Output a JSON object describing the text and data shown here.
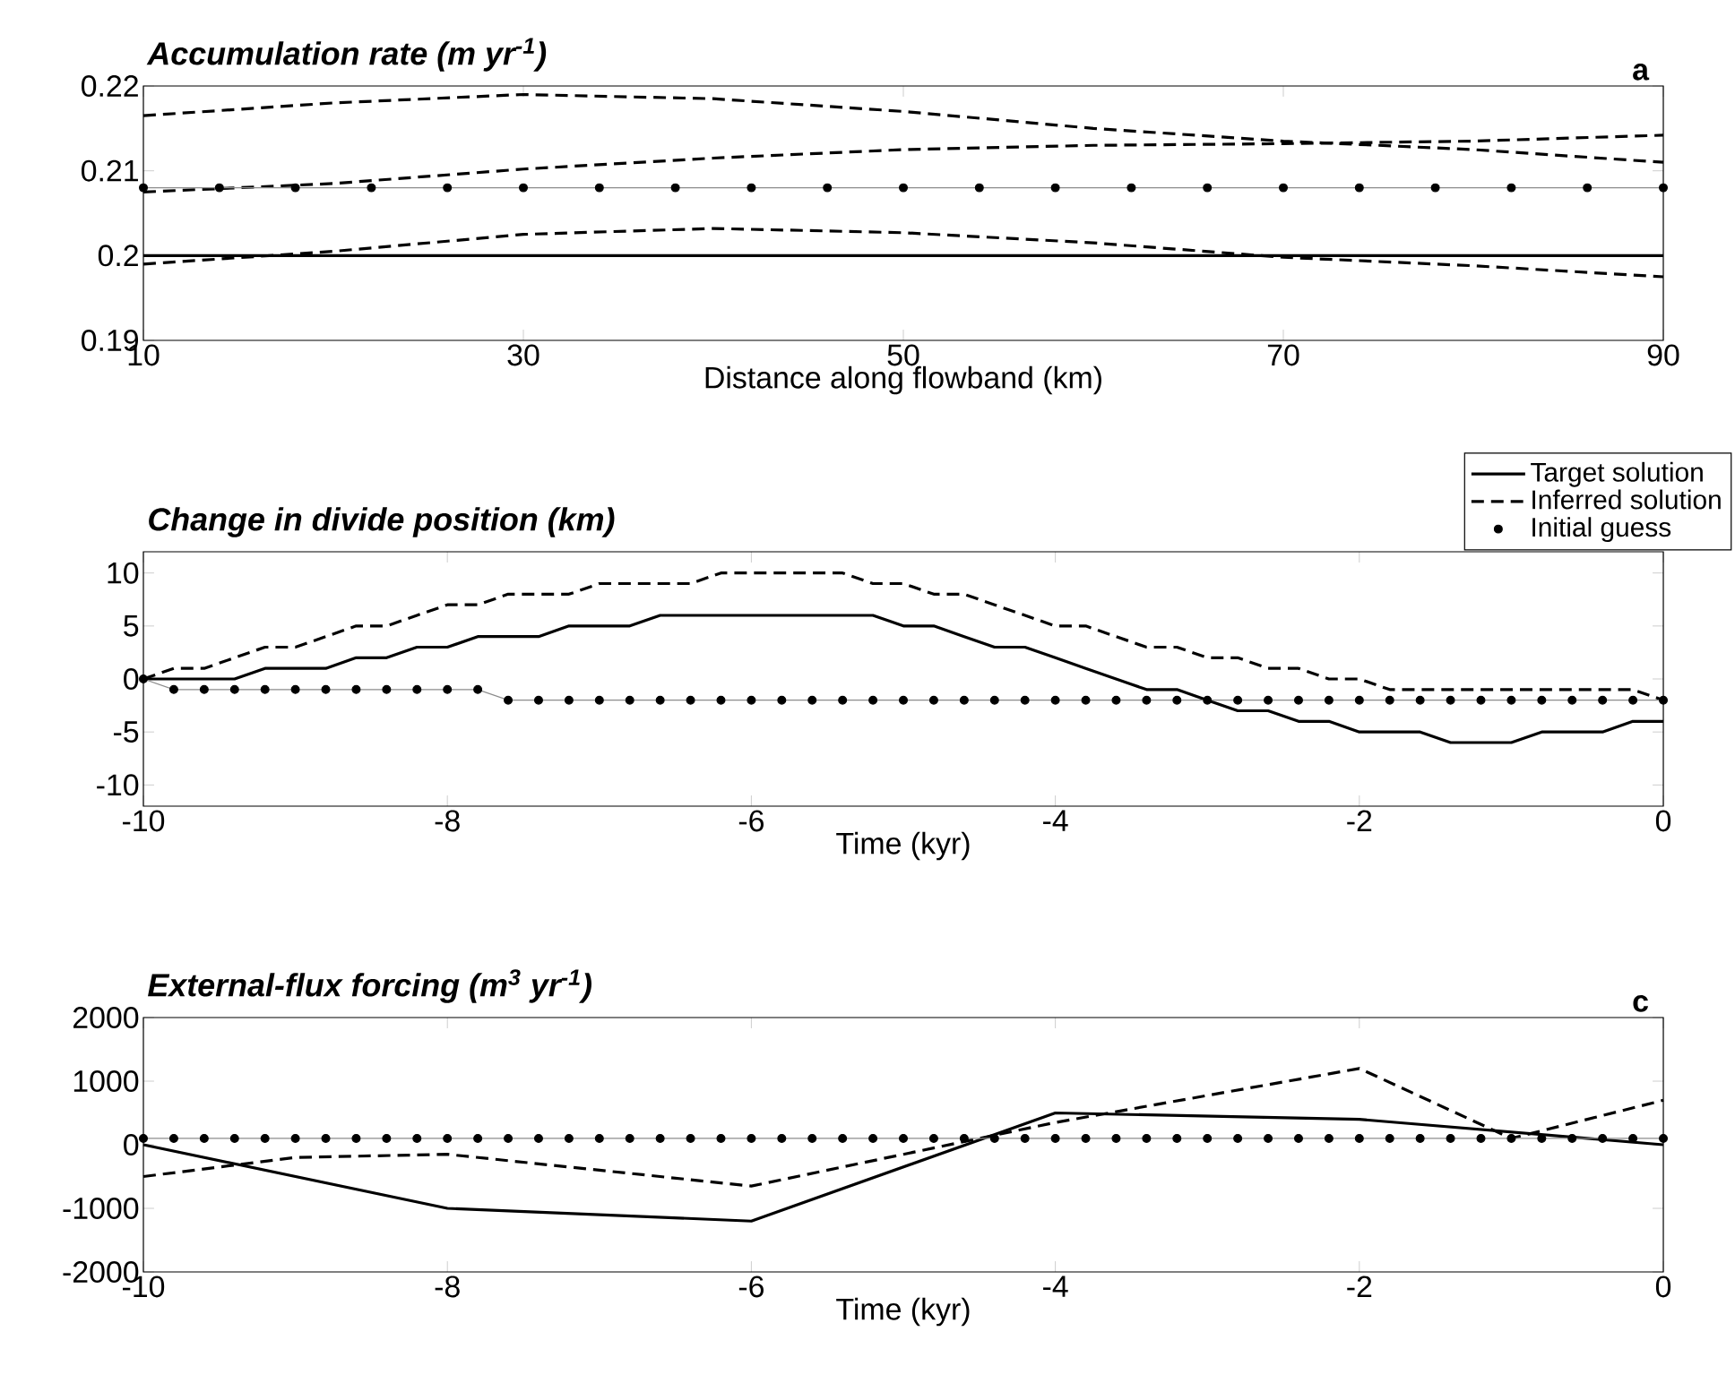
{
  "chart_data": [
    {
      "type": "line",
      "title": "Accumulation rate (m yr$^{-1}$)",
      "xlabel": "Distance along flowband (km)",
      "annotations": [
        "a"
      ],
      "xlim": [
        10,
        90
      ],
      "xticks": [
        10,
        30,
        50,
        70,
        90
      ],
      "ylim": [
        0.19,
        0.22
      ],
      "yticks": [
        0.19,
        0.2,
        0.21,
        0.22
      ],
      "series": [
        {
          "color": "#000000",
          "line_style": "solid",
          "x": [
            10,
            90
          ],
          "values": [
            0.2,
            0.2
          ]
        },
        {
          "color": "#000000",
          "line_style": "dashed",
          "x": [
            10,
            20,
            30,
            40,
            50,
            60,
            70,
            80,
            90
          ],
          "values": [
            0.2165,
            0.218,
            0.219,
            0.2185,
            0.217,
            0.215,
            0.2135,
            0.2125,
            0.211
          ]
        },
        {
          "color": "#000000",
          "line_style": "dashed",
          "x": [
            10,
            20,
            30,
            40,
            50,
            60,
            70,
            80,
            90
          ],
          "values": [
            0.2075,
            0.2085,
            0.2102,
            0.2115,
            0.2125,
            0.213,
            0.2132,
            0.2135,
            0.2142
          ]
        },
        {
          "color": "#000000",
          "line_style": "dashed",
          "x": [
            10,
            20,
            30,
            40,
            50,
            60,
            70,
            80,
            90
          ],
          "values": [
            0.199,
            0.2005,
            0.2025,
            0.2032,
            0.2027,
            0.2015,
            0.1998,
            0.1988,
            0.1975
          ]
        },
        {
          "color": "#000000",
          "line_style": "solid",
          "marker": "circle",
          "x": [
            10,
            14,
            18,
            22,
            26,
            30,
            34,
            38,
            42,
            46,
            50,
            54,
            58,
            62,
            66,
            70,
            74,
            78,
            82,
            86,
            90
          ],
          "values": [
            0.208,
            0.208,
            0.208,
            0.208,
            0.208,
            0.208,
            0.208,
            0.208,
            0.208,
            0.208,
            0.208,
            0.208,
            0.208,
            0.208,
            0.208,
            0.208,
            0.208,
            0.208,
            0.208,
            0.208,
            0.208
          ]
        }
      ]
    },
    {
      "type": "line",
      "title": "Change in divide position (km)",
      "xlabel": "Time (kyr)",
      "legend": "top right",
      "xlim": [
        -10,
        0
      ],
      "xticks": [
        -10,
        -8,
        -6,
        -4,
        -2,
        0
      ],
      "ylim": [
        -12,
        12
      ],
      "yticks": [
        -10,
        -5,
        0,
        5,
        10
      ],
      "x": [
        -10,
        -9.8,
        -9.6,
        -9.4,
        -9.2,
        -9,
        -8.8,
        -8.6,
        -8.4,
        -8.2,
        -8,
        -7.8,
        -7.6,
        -7.4,
        -7.2,
        -7,
        -6.8,
        -6.6,
        -6.4,
        -6.2,
        -6,
        -5.8,
        -5.6,
        -5.4,
        -5.2,
        -5,
        -4.8,
        -4.6,
        -4.4,
        -4.2,
        -4,
        -3.8,
        -3.6,
        -3.4,
        -3.2,
        -3,
        -2.8,
        -2.6,
        -2.4,
        -2.2,
        -2,
        -1.8,
        -1.6,
        -1.4,
        -1.2,
        -1,
        -0.8,
        -0.6,
        -0.4,
        -0.2,
        0
      ],
      "series": [
        {
          "name": "Target solution",
          "color": "#000000",
          "line_style": "solid",
          "values": [
            0,
            0,
            0,
            0,
            1,
            1,
            1,
            2,
            2,
            3,
            3,
            4,
            4,
            4,
            5,
            5,
            5,
            6,
            6,
            6,
            6,
            6,
            6,
            6,
            6,
            5,
            5,
            4,
            3,
            3,
            2,
            1,
            0,
            -1,
            -1,
            -2,
            -3,
            -3,
            -4,
            -4,
            -5,
            -5,
            -5,
            -6,
            -6,
            -6,
            -5,
            -5,
            -5,
            -4,
            -4
          ]
        },
        {
          "name": "Inferred solution",
          "color": "#000000",
          "line_style": "dashed",
          "values": [
            0,
            1,
            1,
            2,
            3,
            3,
            4,
            5,
            5,
            6,
            7,
            7,
            8,
            8,
            8,
            9,
            9,
            9,
            9,
            10,
            10,
            10,
            10,
            10,
            9,
            9,
            8,
            8,
            7,
            6,
            5,
            5,
            4,
            3,
            3,
            2,
            2,
            1,
            1,
            0,
            0,
            -1,
            -1,
            -1,
            -1,
            -1,
            -1,
            -1,
            -1,
            -1,
            -2
          ]
        },
        {
          "name": "Initial guess",
          "color": "#000000",
          "line_style": "solid",
          "marker": "circle",
          "values": [
            0,
            -1,
            -1,
            -1,
            -1,
            -1,
            -1,
            -1,
            -1,
            -1,
            -1,
            -1,
            -2,
            -2,
            -2,
            -2,
            -2,
            -2,
            -2,
            -2,
            -2,
            -2,
            -2,
            -2,
            -2,
            -2,
            -2,
            -2,
            -2,
            -2,
            -2,
            -2,
            -2,
            -2,
            -2,
            -2,
            -2,
            -2,
            -2,
            -2,
            -2,
            -2,
            -2,
            -2,
            -2,
            -2,
            -2,
            -2,
            -2,
            -2,
            -2
          ]
        }
      ]
    },
    {
      "type": "line",
      "title": "External-flux forcing (m$^{3}$ yr$^{-1}$)",
      "xlabel": "Time (kyr)",
      "annotations": [
        "c"
      ],
      "xlim": [
        -10,
        0
      ],
      "xticks": [
        -10,
        -8,
        -6,
        -4,
        -2,
        0
      ],
      "ylim": [
        -2000,
        2000
      ],
      "yticks": [
        -2000,
        -1000,
        0,
        1000,
        2000
      ],
      "series": [
        {
          "color": "#000000",
          "line_style": "solid",
          "x": [
            -10,
            -8,
            -6,
            -4,
            -2,
            0
          ],
          "values": [
            0,
            -1000,
            -1200,
            500,
            400,
            0
          ]
        },
        {
          "color": "#000000",
          "line_style": "dashed",
          "x": [
            -10,
            -9,
            -8,
            -6,
            -4,
            -2,
            -1,
            0
          ],
          "values": [
            -500,
            -200,
            -150,
            -650,
            350,
            1200,
            100,
            700
          ]
        },
        {
          "color": "#000000",
          "line_style": "solid",
          "marker": "circle",
          "x": [
            -10,
            -9.8,
            -9.6,
            -9.4,
            -9.2,
            -9,
            -8.8,
            -8.6,
            -8.4,
            -8.2,
            -8,
            -7.8,
            -7.6,
            -7.4,
            -7.2,
            -7,
            -6.8,
            -6.6,
            -6.4,
            -6.2,
            -6,
            -5.8,
            -5.6,
            -5.4,
            -5.2,
            -5,
            -4.8,
            -4.6,
            -4.4,
            -4.2,
            -4,
            -3.8,
            -3.6,
            -3.4,
            -3.2,
            -3,
            -2.8,
            -2.6,
            -2.4,
            -2.2,
            -2,
            -1.8,
            -1.6,
            -1.4,
            -1.2,
            -1,
            -0.8,
            -0.6,
            -0.4,
            -0.2,
            0
          ],
          "values": [
            100,
            100,
            100,
            100,
            100,
            100,
            100,
            100,
            100,
            100,
            100,
            100,
            100,
            100,
            100,
            100,
            100,
            100,
            100,
            100,
            100,
            100,
            100,
            100,
            100,
            100,
            100,
            100,
            100,
            100,
            100,
            100,
            100,
            100,
            100,
            100,
            100,
            100,
            100,
            100,
            100,
            100,
            100,
            100,
            100,
            100,
            100,
            100,
            100,
            100,
            100
          ]
        }
      ]
    }
  ]
}
